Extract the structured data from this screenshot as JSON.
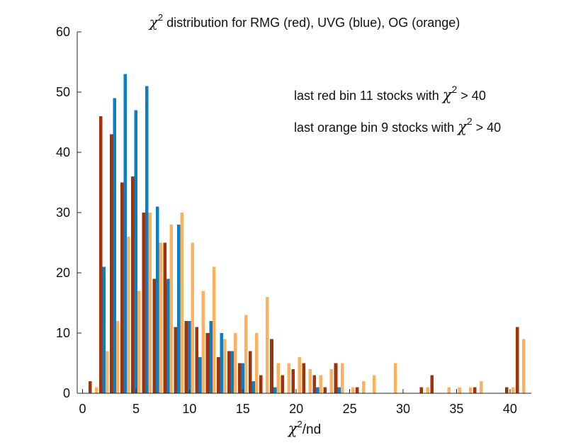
{
  "chart_data": {
    "type": "bar",
    "title": {
      "prefix": "χ",
      "superscript": "2",
      "rest": " distribution for RMG (red), UVG (blue), OG (orange)"
    },
    "xlabel": {
      "prefix": "χ",
      "superscript": "2",
      "rest": "/nd"
    },
    "ylabel": "",
    "xlim": [
      -0.5,
      42
    ],
    "ylim": [
      0,
      60
    ],
    "xticks": [
      0,
      5,
      10,
      15,
      20,
      25,
      30,
      35,
      40
    ],
    "yticks": [
      0,
      10,
      20,
      30,
      40,
      50,
      60
    ],
    "bin_centers": [
      1,
      2,
      3,
      4,
      5,
      6,
      7,
      8,
      9,
      10,
      11,
      12,
      13,
      14,
      15,
      16,
      17,
      18,
      19,
      20,
      21,
      22,
      23,
      24,
      25,
      26,
      27,
      28,
      29,
      30,
      31,
      32,
      33,
      34,
      35,
      36,
      37,
      38,
      39,
      40,
      41
    ],
    "series": [
      {
        "name": "RMG (red)",
        "color": "#a2320a",
        "offset": -0.3,
        "values": [
          2,
          46,
          43,
          35,
          36,
          30,
          19,
          25,
          11,
          12,
          11,
          10,
          6,
          7,
          5,
          7,
          3,
          9,
          3,
          4,
          5,
          3,
          1,
          5,
          0,
          1,
          0,
          0,
          0,
          0,
          0,
          1,
          3,
          0,
          0,
          0,
          1,
          0,
          0,
          1,
          11
        ]
      },
      {
        "name": "UVG (blue)",
        "color": "#0b7fc6",
        "offset": 0.0,
        "values": [
          0,
          21,
          49,
          53,
          47,
          51,
          31,
          19,
          28,
          12,
          6,
          12,
          10,
          7,
          5,
          2,
          0,
          1,
          0,
          0,
          0,
          1,
          0,
          1,
          0,
          0,
          0,
          0,
          0,
          0,
          0,
          0,
          0,
          0,
          0,
          0,
          0,
          0,
          0,
          0,
          0
        ]
      },
      {
        "name": "OG (orange)",
        "color": "#fdb05e",
        "offset": 0.3,
        "values": [
          1,
          7,
          12,
          26,
          17,
          30,
          25,
          28,
          30,
          25,
          17,
          21,
          9,
          10,
          13,
          10,
          16,
          5,
          5,
          6,
          4,
          3,
          4,
          5,
          1,
          2,
          3,
          0,
          5,
          0,
          0,
          1,
          0,
          1,
          1,
          1,
          2,
          0,
          0,
          1,
          9
        ]
      }
    ],
    "annotations": [
      {
        "prefix": "last red bin 11 stocks with ",
        "symbol": "χ",
        "superscript": "2",
        "suffix": " > 40"
      },
      {
        "prefix": "last orange bin 9 stocks with ",
        "symbol": "χ",
        "superscript": "2",
        "suffix": " > 40"
      }
    ],
    "grid": false,
    "legend": "none"
  }
}
